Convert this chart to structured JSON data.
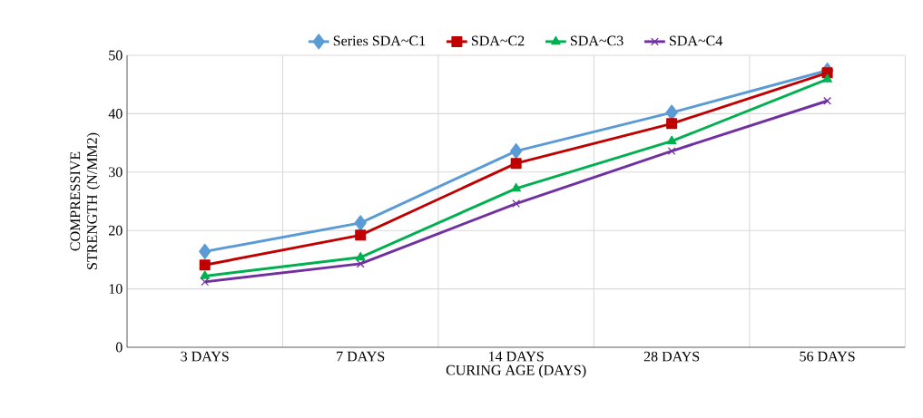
{
  "chart_data": {
    "type": "line",
    "xlabel": "CURING AGE (DAYS)",
    "ylabel": "COMPRESSIVE STRENGTH (N/MM2)",
    "categories": [
      "3 DAYS",
      "7 DAYS",
      "14 DAYS",
      "28 DAYS",
      "56 DAYS"
    ],
    "series": [
      {
        "name": "Series SDA~C1",
        "color": "#5b9bd5",
        "marker": "diamond",
        "values": [
          16.4,
          21.3,
          33.6,
          40.2,
          47.4
        ]
      },
      {
        "name": "SDA~C2",
        "color": "#c00000",
        "marker": "square",
        "values": [
          14.1,
          19.2,
          31.5,
          38.3,
          47.0
        ]
      },
      {
        "name": "SDA~C3",
        "color": "#00b050",
        "marker": "triangle",
        "values": [
          12.2,
          15.4,
          27.2,
          35.3,
          45.9
        ]
      },
      {
        "name": "SDA~C4",
        "color": "#7030a0",
        "marker": "cross",
        "values": [
          11.2,
          14.3,
          24.6,
          33.6,
          42.2
        ]
      }
    ],
    "ylim": [
      0,
      50
    ],
    "yticks": [
      0,
      10,
      20,
      30,
      40,
      50
    ],
    "grid": true,
    "legend": "top",
    "line_style": "solid"
  }
}
